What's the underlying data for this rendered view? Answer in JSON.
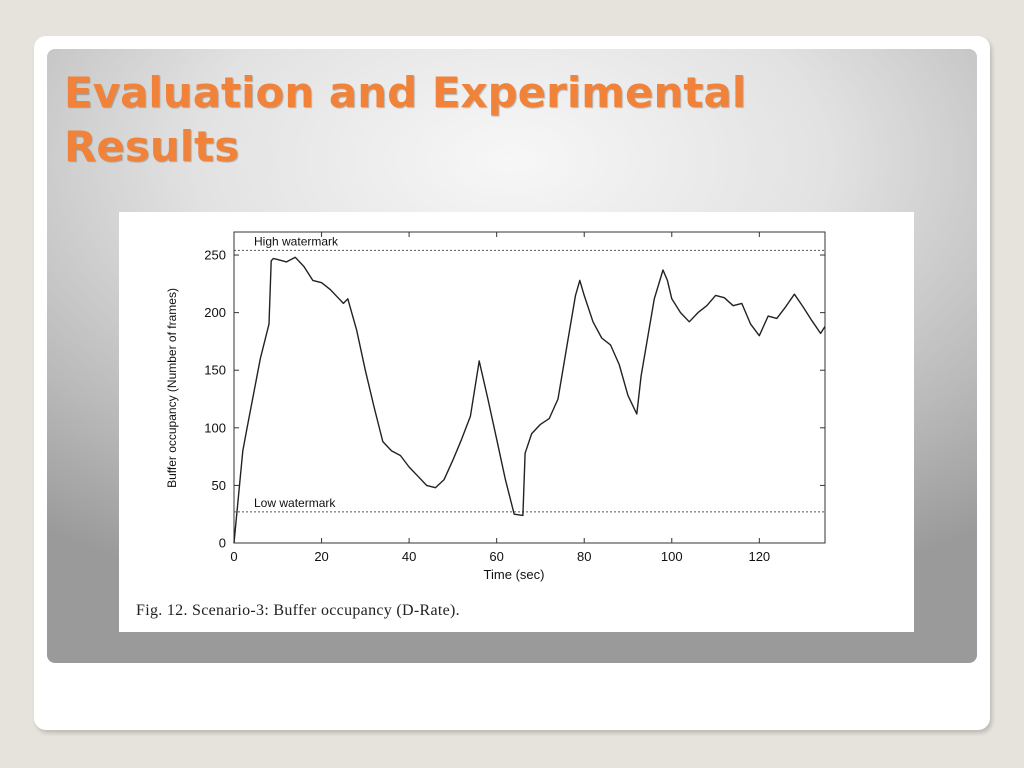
{
  "slide": {
    "title": "Evaluation and Experimental Results"
  },
  "colors": {
    "title": "#f0823a",
    "line": "#222222"
  },
  "chart_data": {
    "type": "line",
    "xlabel": "Time (sec)",
    "ylabel": "Buffer occupancy (Number of frames)",
    "xlim": [
      0,
      135
    ],
    "ylim": [
      0,
      270
    ],
    "xticks": [
      0,
      20,
      40,
      60,
      80,
      100,
      120
    ],
    "yticks": [
      0,
      50,
      100,
      150,
      200,
      250
    ],
    "grid": false,
    "caption": "Fig. 12.   Scenario-3: Buffer occupancy (D-Rate).",
    "reference_lines": [
      {
        "label": "High watermark",
        "y": 254
      },
      {
        "label": "Low watermark",
        "y": 27
      }
    ],
    "series": [
      {
        "x": [
          0,
          1,
          2,
          3,
          4,
          6,
          8,
          8.5,
          9,
          10,
          12,
          14,
          16,
          18,
          20,
          22,
          24,
          25,
          26,
          28,
          30,
          32,
          34,
          36,
          38,
          40,
          42,
          44,
          46,
          48,
          50,
          52,
          54,
          56,
          58,
          60,
          62,
          64,
          66,
          66.5,
          68,
          70,
          72,
          74,
          76,
          78,
          79,
          80,
          82,
          84,
          86,
          88,
          90,
          92,
          93,
          96,
          98,
          99,
          100,
          102,
          104,
          106,
          108,
          110,
          112,
          114,
          116,
          118,
          120,
          122,
          124,
          126,
          128,
          130,
          132,
          134,
          135
        ],
        "y": [
          0,
          40,
          80,
          100,
          120,
          160,
          190,
          245,
          247,
          246,
          244,
          248,
          240,
          228,
          226,
          220,
          212,
          208,
          212,
          185,
          150,
          118,
          88,
          80,
          76,
          66,
          58,
          50,
          48,
          55,
          72,
          90,
          110,
          158,
          125,
          90,
          55,
          25,
          24,
          78,
          95,
          103,
          108,
          125,
          170,
          215,
          228,
          215,
          192,
          178,
          172,
          155,
          128,
          112,
          145,
          212,
          237,
          228,
          212,
          200,
          192,
          200,
          206,
          215,
          213,
          206,
          208,
          190,
          180,
          197,
          195,
          205,
          216,
          205,
          193,
          182,
          188
        ]
      }
    ]
  }
}
